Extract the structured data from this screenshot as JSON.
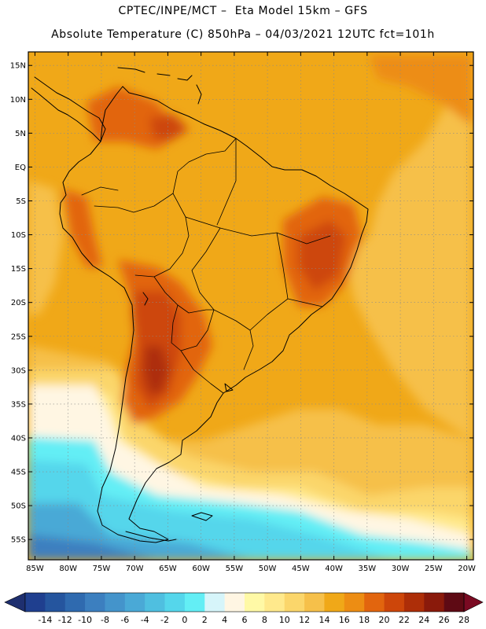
{
  "title_line1": "CPTEC/INPE/MCT –  Eta Model 15km – GFS",
  "title_line2": "Absolute Temperature (C) 850hPa – 04/03/2021 12UTC fct=101h",
  "map": {
    "lon_range": [
      -86,
      -19
    ],
    "lat_range": [
      -58,
      17
    ],
    "lon_ticks": [
      {
        "value": -85,
        "label": "85W"
      },
      {
        "value": -80,
        "label": "80W"
      },
      {
        "value": -75,
        "label": "75W"
      },
      {
        "value": -70,
        "label": "70W"
      },
      {
        "value": -65,
        "label": "65W"
      },
      {
        "value": -60,
        "label": "60W"
      },
      {
        "value": -55,
        "label": "55W"
      },
      {
        "value": -50,
        "label": "50W"
      },
      {
        "value": -45,
        "label": "45W"
      },
      {
        "value": -40,
        "label": "40W"
      },
      {
        "value": -35,
        "label": "35W"
      },
      {
        "value": -30,
        "label": "30W"
      },
      {
        "value": -25,
        "label": "25W"
      },
      {
        "value": -20,
        "label": "20W"
      }
    ],
    "lat_ticks": [
      {
        "value": 15,
        "label": "15N"
      },
      {
        "value": 10,
        "label": "10N"
      },
      {
        "value": 5,
        "label": "5N"
      },
      {
        "value": 0,
        "label": "EQ"
      },
      {
        "value": -5,
        "label": "5S"
      },
      {
        "value": -10,
        "label": "10S"
      },
      {
        "value": -15,
        "label": "15S"
      },
      {
        "value": -20,
        "label": "20S"
      },
      {
        "value": -25,
        "label": "25S"
      },
      {
        "value": -30,
        "label": "30S"
      },
      {
        "value": -35,
        "label": "35S"
      },
      {
        "value": -40,
        "label": "40S"
      },
      {
        "value": -45,
        "label": "45S"
      },
      {
        "value": -50,
        "label": "50S"
      },
      {
        "value": -55,
        "label": "55S"
      }
    ]
  },
  "colorbar": {
    "labels": [
      "-14",
      "-12",
      "-10",
      "-8",
      "-6",
      "-4",
      "-2",
      "0",
      "2",
      "4",
      "6",
      "8",
      "10",
      "12",
      "14",
      "16",
      "18",
      "20",
      "22",
      "24",
      "26",
      "28"
    ],
    "colors": [
      "#1f3f8f",
      "#25559e",
      "#2f6aaf",
      "#3c7fbf",
      "#4494cb",
      "#4aa9d6",
      "#4fbfe0",
      "#55d6eb",
      "#63eef5",
      "#d6f5fa",
      "#fff6e3",
      "#fff9a6",
      "#ffe98c",
      "#fbd66b",
      "#f6c04a",
      "#f0a818",
      "#ed8d13",
      "#e2650e",
      "#cd460a",
      "#ad2e08",
      "#8a1a0b",
      "#5e0a14"
    ],
    "low_color": "#1e2f6f",
    "high_color": "#7a0a22"
  },
  "colors": {
    "background": "#ffffff",
    "base_field": "#f0a818",
    "ocean_cool": "#f6c04a",
    "cold_pale": "#fff6e3",
    "hot": "#cd460a"
  }
}
